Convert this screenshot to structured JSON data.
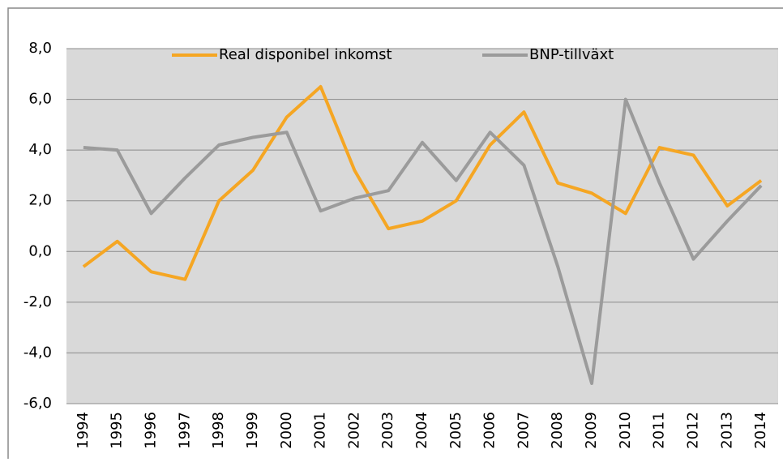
{
  "chart_data": {
    "type": "line",
    "categories": [
      "1994",
      "1995",
      "1996",
      "1997",
      "1998",
      "1999",
      "2000",
      "2001",
      "2002",
      "2003",
      "2004",
      "2005",
      "2006",
      "2007",
      "2008",
      "2009",
      "2010",
      "2011",
      "2012",
      "2013",
      "2014"
    ],
    "series": [
      {
        "name": "Real disponibel inkomst",
        "color": "#f5a623",
        "values": [
          -0.6,
          0.4,
          -0.8,
          -1.1,
          2.0,
          3.2,
          5.3,
          6.5,
          3.2,
          0.9,
          1.2,
          2.0,
          4.2,
          5.5,
          2.7,
          2.3,
          1.5,
          4.1,
          3.8,
          1.8,
          2.8
        ]
      },
      {
        "name": "BNP-tillväxt",
        "color": "#9b9b9b",
        "values": [
          4.1,
          4.0,
          1.5,
          2.9,
          4.2,
          4.5,
          4.7,
          1.6,
          2.1,
          2.4,
          4.3,
          2.8,
          4.7,
          3.4,
          -0.6,
          -5.2,
          6.0,
          2.7,
          -0.3,
          1.2,
          2.6
        ]
      }
    ],
    "ylim": [
      -6,
      8
    ],
    "yticks": [
      {
        "value": -6,
        "label": "-6,0"
      },
      {
        "value": -4,
        "label": "-4,0"
      },
      {
        "value": -2,
        "label": "-2,0"
      },
      {
        "value": 0,
        "label": "0,0"
      },
      {
        "value": 2,
        "label": "2,0"
      },
      {
        "value": 4,
        "label": "4,0"
      },
      {
        "value": 6,
        "label": "6,0"
      },
      {
        "value": 8,
        "label": "8,0"
      }
    ],
    "grid": true
  }
}
